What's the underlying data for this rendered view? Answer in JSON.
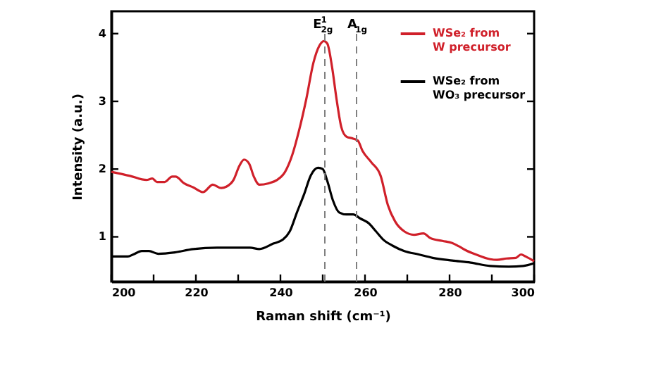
{
  "chart_data": {
    "type": "line",
    "xlabel": "Raman shift (cm⁻¹)",
    "ylabel": "Intensity (a.u.)",
    "xlim": [
      200,
      300
    ],
    "ylim": [
      0.34,
      4.33
    ],
    "xticks": [
      200,
      {
        "value": 210,
        "label": null
      },
      220,
      {
        "value": 230,
        "label": null
      },
      240,
      {
        "value": 250,
        "label": null
      },
      260,
      {
        "value": 270,
        "label": null
      },
      280,
      {
        "value": 290,
        "label": null
      },
      300
    ],
    "yticks": [
      1,
      2,
      3,
      4
    ],
    "grid": false,
    "legend": "top right",
    "line_style": "solid",
    "marker": "none",
    "series": [
      {
        "name": "WSe₂ from W precursor",
        "color": "#d0202a",
        "x": [
          200,
          204.4,
          208.3,
          209.7,
          210.8,
          212.6,
          214.4,
          215.2,
          217.2,
          219.4,
          221.7,
          224,
          226,
          227.2,
          228.9,
          230.3,
          231.4,
          232.6,
          233.7,
          235,
          237.2,
          239.2,
          241.1,
          242.8,
          244.4,
          246.1,
          247.8,
          249.2,
          250.3,
          251.1,
          252.2,
          253.3,
          254.4,
          255.6,
          257.2,
          258.3,
          259.4,
          261.5,
          263.7,
          265.4,
          267.1,
          269.3,
          271.6,
          273.8,
          275.5,
          278.3,
          280.6,
          282.2,
          283.9,
          286.2,
          289.6,
          291.2,
          293.5,
          295.7,
          296.9,
          298,
          300
        ],
        "values": [
          1.96,
          1.9,
          1.84,
          1.86,
          1.81,
          1.81,
          1.89,
          1.89,
          1.79,
          1.73,
          1.66,
          1.77,
          1.72,
          1.74,
          1.84,
          2.05,
          2.14,
          2.08,
          1.89,
          1.77,
          1.79,
          1.84,
          1.96,
          2.21,
          2.57,
          3.03,
          3.57,
          3.82,
          3.89,
          3.85,
          3.51,
          3.02,
          2.62,
          2.48,
          2.45,
          2.42,
          2.27,
          2.1,
          1.9,
          1.47,
          1.23,
          1.08,
          1.03,
          1.05,
          0.98,
          0.94,
          0.91,
          0.86,
          0.8,
          0.74,
          0.67,
          0.66,
          0.68,
          0.69,
          0.74,
          0.71,
          0.64
        ]
      },
      {
        "name": "WSe₂ from WO₃ precursor",
        "color": "#000000",
        "x": [
          200,
          203.9,
          205.2,
          207.2,
          208.9,
          211.1,
          215,
          219.4,
          225,
          232.8,
          235,
          238.3,
          240.6,
          242.2,
          243.9,
          245.6,
          247.2,
          248.9,
          250,
          251.1,
          252.4,
          253.9,
          255.6,
          257.2,
          258.9,
          260.9,
          262.6,
          264.3,
          266.5,
          269.3,
          272.7,
          276,
          280.6,
          285,
          289.6,
          294,
          297.4,
          300
        ],
        "values": [
          0.71,
          0.71,
          0.74,
          0.79,
          0.79,
          0.75,
          0.77,
          0.82,
          0.84,
          0.84,
          0.82,
          0.9,
          0.96,
          1.08,
          1.36,
          1.63,
          1.91,
          2.02,
          2.0,
          1.82,
          1.54,
          1.36,
          1.33,
          1.33,
          1.27,
          1.2,
          1.08,
          0.96,
          0.87,
          0.79,
          0.74,
          0.69,
          0.65,
          0.62,
          0.57,
          0.56,
          0.57,
          0.61
        ]
      }
    ],
    "ref_lines": [
      {
        "axis": "x",
        "value": 250.5,
        "label": "E$^{1}$$_{2g}$",
        "color": "#808080",
        "line_style": "dashed"
      },
      {
        "axis": "x",
        "value": 258,
        "label": "A$_{1g}$",
        "color": "#808080",
        "line_style": "dashed"
      }
    ]
  }
}
